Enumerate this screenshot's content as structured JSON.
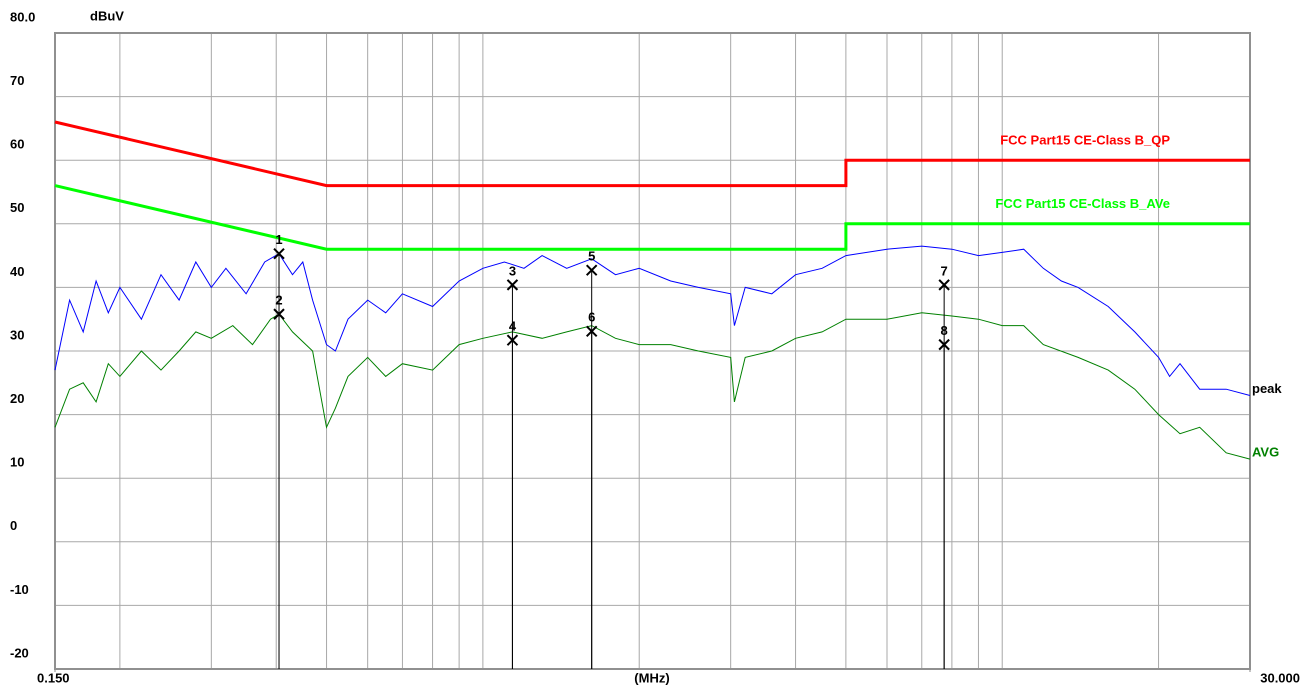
{
  "chart_data": {
    "type": "line",
    "y_label": "dBuV",
    "x_label": "(MHz)",
    "xlog": true,
    "xlim": [
      0.15,
      30
    ],
    "ylim": [
      -20,
      80
    ],
    "xticks": [
      {
        "value": 0.15,
        "label": "0.150"
      },
      {
        "value": 30,
        "label": "30.000"
      }
    ],
    "xgrid": [
      0.2,
      0.3,
      0.4,
      0.5,
      0.6,
      0.7,
      0.8,
      0.9,
      1,
      2,
      3,
      4,
      5,
      6,
      7,
      8,
      9,
      10,
      20
    ],
    "yticks": [
      {
        "value": 80,
        "label": "80.0"
      },
      70,
      60,
      50,
      40,
      30,
      20,
      10,
      0,
      -10,
      -20
    ],
    "grid": true,
    "series": [
      {
        "name": "FCC Part15 CE-Class B_QP",
        "color": "#ff0000",
        "label_side": "above",
        "x": [
          0.15,
          0.5,
          0.5,
          5,
          5,
          30
        ],
        "values": [
          66,
          56,
          56,
          56,
          60,
          60
        ]
      },
      {
        "name": "FCC Part15 CE-Class B_AVe",
        "color": "#00ff00",
        "label_side": "above",
        "x": [
          0.15,
          0.5,
          0.5,
          5,
          5,
          30
        ],
        "values": [
          56,
          46,
          46,
          46,
          50,
          50
        ]
      },
      {
        "name": "peak",
        "color": "#0000ff",
        "label_side": "right",
        "x": [
          0.15,
          0.16,
          0.17,
          0.18,
          0.19,
          0.2,
          0.22,
          0.24,
          0.26,
          0.28,
          0.3,
          0.32,
          0.35,
          0.38,
          0.405,
          0.43,
          0.45,
          0.47,
          0.5,
          0.52,
          0.55,
          0.6,
          0.65,
          0.7,
          0.8,
          0.9,
          1.0,
          1.1,
          1.2,
          1.3,
          1.45,
          1.62,
          1.8,
          2.0,
          2.3,
          2.6,
          3.0,
          3.05,
          3.2,
          3.6,
          4.0,
          4.5,
          5.0,
          6.0,
          7.0,
          8.0,
          9.0,
          10,
          11,
          12,
          13,
          14,
          16,
          18,
          20,
          21,
          22,
          24,
          27,
          30
        ],
        "values": [
          27,
          38,
          33,
          41,
          36,
          40,
          35,
          42,
          38,
          44,
          40,
          43,
          39,
          44,
          45.3,
          42,
          44,
          38,
          31,
          30,
          35,
          38,
          36,
          39,
          37,
          41,
          43,
          44,
          43,
          45,
          43,
          44.5,
          42,
          43,
          41,
          40,
          39,
          34,
          40,
          39,
          42,
          43,
          45,
          46,
          46.5,
          46,
          45,
          45.5,
          46,
          43,
          41,
          40,
          37,
          33,
          29,
          26,
          28,
          24,
          24,
          23
        ]
      },
      {
        "name": "AVG",
        "color": "#008000",
        "label_side": "right",
        "x": [
          0.15,
          0.16,
          0.17,
          0.18,
          0.19,
          0.2,
          0.22,
          0.24,
          0.26,
          0.28,
          0.3,
          0.33,
          0.36,
          0.39,
          0.405,
          0.43,
          0.47,
          0.5,
          0.52,
          0.55,
          0.6,
          0.65,
          0.7,
          0.8,
          0.9,
          1.0,
          1.14,
          1.3,
          1.45,
          1.62,
          1.8,
          2.0,
          2.3,
          2.6,
          3.0,
          3.05,
          3.2,
          3.6,
          4.0,
          4.5,
          5.0,
          6.0,
          7.0,
          8.0,
          9.0,
          10,
          11,
          12,
          14,
          16,
          18,
          20,
          22,
          24,
          27,
          30
        ],
        "values": [
          18,
          24,
          25,
          22,
          28,
          26,
          30,
          27,
          30,
          33,
          32,
          34,
          31,
          35,
          35.8,
          33,
          30,
          18,
          21,
          26,
          29,
          26,
          28,
          27,
          31,
          32,
          33,
          32,
          33,
          34,
          32,
          31,
          31,
          30,
          29,
          22,
          29,
          30,
          32,
          33,
          35,
          35,
          36,
          35.5,
          35,
          34,
          34,
          31,
          29,
          27,
          24,
          20,
          17,
          18,
          14,
          13
        ]
      }
    ],
    "markers": [
      {
        "label": "1",
        "x": 0.405,
        "value": 45.3
      },
      {
        "label": "2",
        "x": 0.405,
        "value": 35.8
      },
      {
        "label": "3",
        "x": 1.14,
        "value": 40.4
      },
      {
        "label": "4",
        "x": 1.14,
        "value": 31.7
      },
      {
        "label": "5",
        "x": 1.62,
        "value": 42.7
      },
      {
        "label": "6",
        "x": 1.62,
        "value": 33.1
      },
      {
        "label": "7",
        "x": 7.73,
        "value": 40.4
      },
      {
        "label": "8",
        "x": 7.73,
        "value": 31.0
      }
    ]
  }
}
